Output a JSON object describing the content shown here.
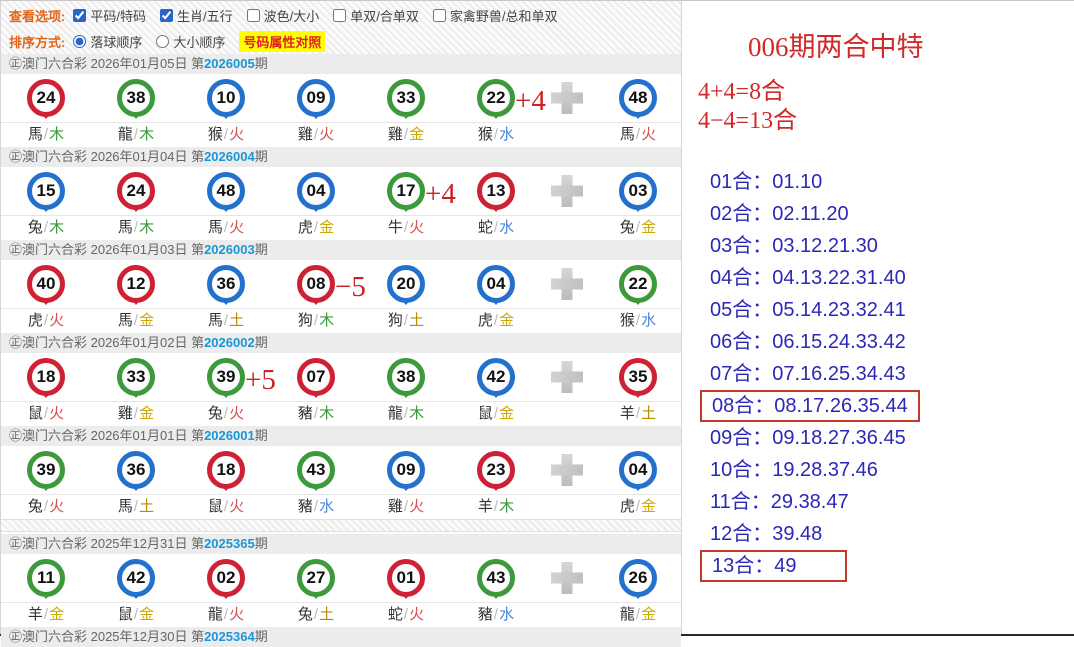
{
  "options_bar": {
    "view_label": "查看选项:",
    "sort_label": "排序方式:",
    "checkboxes": [
      {
        "label": "平码/特码",
        "checked": true
      },
      {
        "label": "生肖/五行",
        "checked": true
      },
      {
        "label": "波色/大小",
        "checked": false
      },
      {
        "label": "单双/合单双",
        "checked": false
      },
      {
        "label": "家禽野兽/总和单双",
        "checked": false
      }
    ],
    "radios": [
      {
        "label": "落球顺序",
        "selected": true
      },
      {
        "label": "大小顺序",
        "selected": false
      }
    ],
    "compare_button": "号码属性对照"
  },
  "strings": {
    "issue_prefix": "第",
    "issue_suffix": "期"
  },
  "periods": [
    {
      "source": "㊣澳门六合彩",
      "date": "2026年01月05日",
      "issue": "2026005",
      "annotation": {
        "text": "+4",
        "after": 5
      },
      "balls": [
        {
          "num": "24",
          "color": "red",
          "zodiac": "馬",
          "element": "木"
        },
        {
          "num": "38",
          "color": "green",
          "zodiac": "龍",
          "element": "木"
        },
        {
          "num": "10",
          "color": "blue",
          "zodiac": "猴",
          "element": "火"
        },
        {
          "num": "09",
          "color": "blue",
          "zodiac": "雞",
          "element": "火"
        },
        {
          "num": "33",
          "color": "green",
          "zodiac": "雞",
          "element": "金"
        },
        {
          "num": "22",
          "color": "green",
          "zodiac": "猴",
          "element": "水"
        },
        {
          "num": "48",
          "color": "blue",
          "zodiac": "馬",
          "element": "火"
        }
      ]
    },
    {
      "source": "㊣澳门六合彩",
      "date": "2026年01月04日",
      "issue": "2026004",
      "annotation": {
        "text": "+4",
        "after": 4
      },
      "balls": [
        {
          "num": "15",
          "color": "blue",
          "zodiac": "兔",
          "element": "木"
        },
        {
          "num": "24",
          "color": "red",
          "zodiac": "馬",
          "element": "木"
        },
        {
          "num": "48",
          "color": "blue",
          "zodiac": "馬",
          "element": "火"
        },
        {
          "num": "04",
          "color": "blue",
          "zodiac": "虎",
          "element": "金"
        },
        {
          "num": "17",
          "color": "green",
          "zodiac": "牛",
          "element": "火"
        },
        {
          "num": "13",
          "color": "red",
          "zodiac": "蛇",
          "element": "水"
        },
        {
          "num": "03",
          "color": "blue",
          "zodiac": "兔",
          "element": "金"
        }
      ]
    },
    {
      "source": "㊣澳门六合彩",
      "date": "2026年01月03日",
      "issue": "2026003",
      "annotation": {
        "text": "−5",
        "after": 3
      },
      "balls": [
        {
          "num": "40",
          "color": "red",
          "zodiac": "虎",
          "element": "火"
        },
        {
          "num": "12",
          "color": "red",
          "zodiac": "馬",
          "element": "金"
        },
        {
          "num": "36",
          "color": "blue",
          "zodiac": "馬",
          "element": "土"
        },
        {
          "num": "08",
          "color": "red",
          "zodiac": "狗",
          "element": "木"
        },
        {
          "num": "20",
          "color": "blue",
          "zodiac": "狗",
          "element": "土"
        },
        {
          "num": "04",
          "color": "blue",
          "zodiac": "虎",
          "element": "金"
        },
        {
          "num": "22",
          "color": "green",
          "zodiac": "猴",
          "element": "水"
        }
      ]
    },
    {
      "source": "㊣澳门六合彩",
      "date": "2026年01月02日",
      "issue": "2026002",
      "annotation": {
        "text": "+5",
        "after": 2
      },
      "balls": [
        {
          "num": "18",
          "color": "red",
          "zodiac": "鼠",
          "element": "火"
        },
        {
          "num": "33",
          "color": "green",
          "zodiac": "雞",
          "element": "金"
        },
        {
          "num": "39",
          "color": "green",
          "zodiac": "兔",
          "element": "火"
        },
        {
          "num": "07",
          "color": "red",
          "zodiac": "豬",
          "element": "木"
        },
        {
          "num": "38",
          "color": "green",
          "zodiac": "龍",
          "element": "木"
        },
        {
          "num": "42",
          "color": "blue",
          "zodiac": "鼠",
          "element": "金"
        },
        {
          "num": "35",
          "color": "red",
          "zodiac": "羊",
          "element": "土"
        }
      ]
    },
    {
      "source": "㊣澳门六合彩",
      "date": "2026年01月01日",
      "issue": "2026001",
      "annotation": null,
      "balls": [
        {
          "num": "39",
          "color": "green",
          "zodiac": "兔",
          "element": "火"
        },
        {
          "num": "36",
          "color": "blue",
          "zodiac": "馬",
          "element": "土"
        },
        {
          "num": "18",
          "color": "red",
          "zodiac": "鼠",
          "element": "火"
        },
        {
          "num": "43",
          "color": "green",
          "zodiac": "豬",
          "element": "水"
        },
        {
          "num": "09",
          "color": "blue",
          "zodiac": "雞",
          "element": "火"
        },
        {
          "num": "23",
          "color": "red",
          "zodiac": "羊",
          "element": "木"
        },
        {
          "num": "04",
          "color": "blue",
          "zodiac": "虎",
          "element": "金"
        }
      ],
      "separator_after": true
    },
    {
      "source": "㊣澳门六合彩",
      "date": "2025年12月31日",
      "issue": "2025365",
      "annotation": null,
      "balls": [
        {
          "num": "11",
          "color": "green",
          "zodiac": "羊",
          "element": "金"
        },
        {
          "num": "42",
          "color": "blue",
          "zodiac": "鼠",
          "element": "金"
        },
        {
          "num": "02",
          "color": "red",
          "zodiac": "龍",
          "element": "火"
        },
        {
          "num": "27",
          "color": "green",
          "zodiac": "兔",
          "element": "土"
        },
        {
          "num": "01",
          "color": "red",
          "zodiac": "蛇",
          "element": "火"
        },
        {
          "num": "43",
          "color": "green",
          "zodiac": "豬",
          "element": "水"
        },
        {
          "num": "26",
          "color": "blue",
          "zodiac": "龍",
          "element": "金"
        }
      ]
    },
    {
      "source": "㊣澳门六合彩",
      "date": "2025年12月30日",
      "issue": "2025364",
      "annotation": null,
      "balls": [],
      "partial": true
    }
  ],
  "right_panel": {
    "title": "006期两合中特",
    "formula1": "4+4=8合",
    "formula2": "4−4=13合",
    "separator": "：",
    "items": [
      {
        "label": "01合",
        "numbers": "01.10",
        "boxed": false
      },
      {
        "label": "02合",
        "numbers": "02.11.20",
        "boxed": false
      },
      {
        "label": "03合",
        "numbers": "03.12.21.30",
        "boxed": false
      },
      {
        "label": "04合",
        "numbers": "04.13.22.31.40",
        "boxed": false
      },
      {
        "label": "05合",
        "numbers": "05.14.23.32.41",
        "boxed": false
      },
      {
        "label": "06合",
        "numbers": "06.15.24.33.42",
        "boxed": false
      },
      {
        "label": "07合",
        "numbers": "07.16.25.34.43",
        "boxed": false
      },
      {
        "label": "08合",
        "numbers": "08.17.26.35.44",
        "boxed": true
      },
      {
        "label": "09合",
        "numbers": "09.18.27.36.45",
        "boxed": false
      },
      {
        "label": "10合",
        "numbers": "19.28.37.46",
        "boxed": false
      },
      {
        "label": "11合",
        "numbers": "29.38.47",
        "boxed": false
      },
      {
        "label": "12合",
        "numbers": "39.48",
        "boxed": false
      },
      {
        "label": "13合",
        "numbers": "49",
        "boxed": true,
        "box_wide": true
      }
    ]
  },
  "colors": {
    "ball": {
      "red": "#cf2134",
      "green": "#3c9a3c",
      "blue": "#2470cd"
    },
    "elements": {
      "木": "#3a9a3a",
      "火": "#d85050",
      "金": "#cfa800",
      "水": "#4a86d8",
      "土": "#bd8a00"
    },
    "accent": {
      "issue_blue": "#1b96d5",
      "annotation_red": "#cc2222",
      "panel_red": "#d02a2a",
      "combo_blue": "#2a28b8",
      "box_red": "#c0392b",
      "highlight_yellow": "#ffff00",
      "option_label_orange": "#e2661a"
    }
  }
}
